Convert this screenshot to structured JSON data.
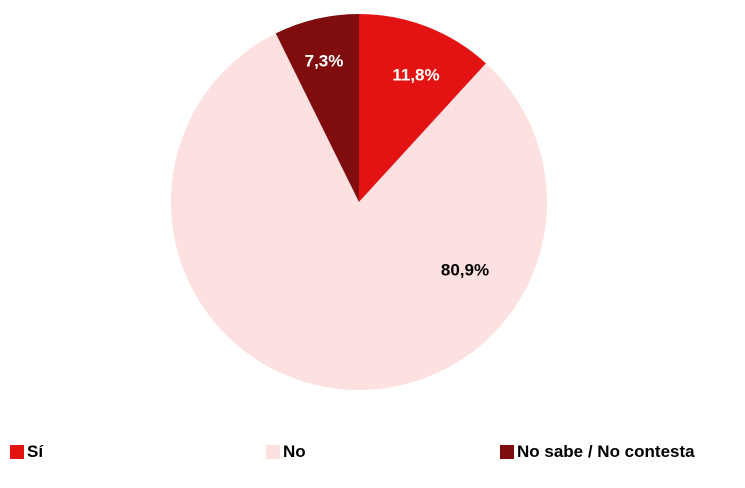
{
  "chart_data": {
    "type": "pie",
    "title": "",
    "categories": [
      "Sí",
      "No",
      "No sabe / No contesta"
    ],
    "values": [
      11.8,
      80.9,
      7.3
    ],
    "labels": [
      "11,8%",
      "80,9%",
      "7,3%"
    ],
    "colors": [
      "#e31313",
      "#fde0e0",
      "#800d0d"
    ],
    "label_colors": [
      "#ffffff",
      "#000000",
      "#ffffff"
    ],
    "start_angle_deg": 0,
    "direction": "clockwise",
    "legend_position": "bottom"
  },
  "legend": {
    "items": [
      {
        "label": "Sí",
        "color": "#e31313"
      },
      {
        "label": "No",
        "color": "#fde0e0"
      },
      {
        "label": "No sabe / No contesta",
        "color": "#800d0d"
      }
    ]
  }
}
